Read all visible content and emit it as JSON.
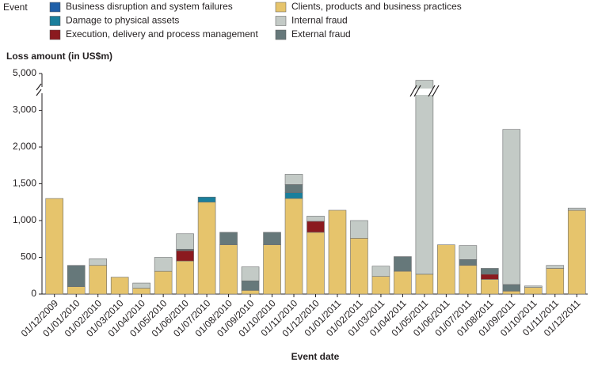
{
  "chart_data": {
    "type": "bar",
    "stacked": true,
    "legend_title": "Event",
    "y_label": "Loss amount (in US$m)",
    "x_label": "Event date",
    "categories": [
      "01/12/2009",
      "01/01/2010",
      "01/02/2010",
      "01/03/2010",
      "01/04/2010",
      "01/05/2010",
      "01/06/2010",
      "01/07/2010",
      "01/08/2010",
      "01/09/2010",
      "01/10/2010",
      "01/11/2010",
      "01/12/2010",
      "01/01/2011",
      "01/02/2011",
      "01/03/2011",
      "01/04/2011",
      "01/05/2011",
      "01/06/2011",
      "01/07/2011",
      "01/08/2011",
      "01/09/2011",
      "01/10/2011",
      "01/11/2011",
      "01/12/2011"
    ],
    "series": [
      {
        "name": "Business disruption and system failures",
        "color": "#1f5fa8",
        "values": [
          0,
          0,
          0,
          0,
          0,
          0,
          0,
          0,
          0,
          0,
          0,
          0,
          0,
          0,
          0,
          0,
          0,
          0,
          0,
          0,
          0,
          0,
          0,
          0,
          0
        ]
      },
      {
        "name": "Clients, products and business practices",
        "color": "#e6c46c",
        "values": [
          1300,
          100,
          390,
          230,
          80,
          310,
          450,
          1250,
          670,
          50,
          670,
          1300,
          840,
          1140,
          760,
          240,
          310,
          270,
          670,
          390,
          200,
          40,
          90,
          350,
          1140
        ]
      },
      {
        "name": "Damage to physical assets",
        "color": "#1a7f9c",
        "values": [
          0,
          0,
          0,
          0,
          0,
          0,
          0,
          70,
          0,
          0,
          0,
          80,
          0,
          0,
          0,
          0,
          0,
          0,
          0,
          0,
          0,
          0,
          0,
          0,
          0
        ]
      },
      {
        "name": "Internal fraud",
        "color": "#c3cac6",
        "values": [
          0,
          0,
          90,
          0,
          70,
          190,
          210,
          0,
          0,
          190,
          0,
          140,
          70,
          0,
          240,
          140,
          0,
          4360,
          0,
          190,
          0,
          2350,
          20,
          40,
          30
        ]
      },
      {
        "name": "Execution, delivery and process management",
        "color": "#8b1a1f",
        "values": [
          0,
          0,
          0,
          0,
          0,
          0,
          140,
          0,
          0,
          0,
          0,
          0,
          150,
          0,
          0,
          0,
          0,
          0,
          0,
          0,
          70,
          0,
          0,
          0,
          0
        ]
      },
      {
        "name": "External fraud",
        "color": "#66787a",
        "values": [
          0,
          290,
          0,
          0,
          0,
          0,
          20,
          0,
          170,
          130,
          170,
          110,
          0,
          0,
          0,
          0,
          200,
          0,
          0,
          80,
          80,
          90,
          0,
          0,
          0
        ]
      }
    ],
    "ylim": [
      0,
      5000
    ],
    "yticks": [
      0,
      500,
      {
        "value": 1000,
        "label": "1,000"
      },
      {
        "value": 1500,
        "label": "1,500"
      },
      {
        "value": 2000,
        "label": "2,000"
      },
      {
        "value": 3000,
        "label": "3,000"
      },
      {
        "value": 5000,
        "label": "5,000"
      }
    ]
  }
}
